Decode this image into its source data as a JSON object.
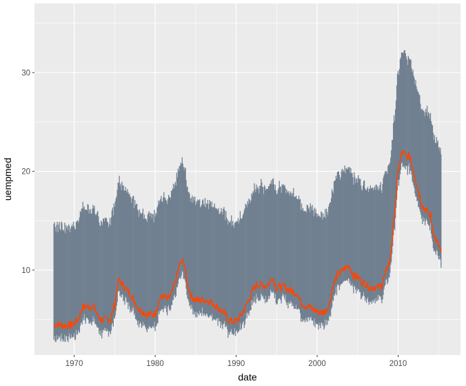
{
  "chart_data": {
    "type": "line",
    "title": "",
    "xlabel": "date",
    "ylabel": "uempmed",
    "xlim": [
      1965.1,
      2017.7
    ],
    "ylim": [
      1.4,
      37.0
    ],
    "x_ticks": [
      1970,
      1980,
      1990,
      2000,
      2010
    ],
    "x_tick_labels": [
      "1970",
      "1980",
      "1990",
      "2000",
      "2010"
    ],
    "y_ticks": [
      10,
      20,
      30
    ],
    "y_tick_labels": [
      "10",
      "20",
      "30"
    ],
    "grid": true,
    "legend": "none",
    "colors": {
      "panel": "#ebebeb",
      "grid": "#ffffff",
      "line": "#ff4500",
      "ribbon": "#708090"
    },
    "x": [
      1967.5,
      1968,
      1968.5,
      1969,
      1969.5,
      1970,
      1970.5,
      1971,
      1971.5,
      1972,
      1972.5,
      1973,
      1973.5,
      1974,
      1974.5,
      1975,
      1975.5,
      1976,
      1976.5,
      1977,
      1977.5,
      1978,
      1978.5,
      1979,
      1979.5,
      1980,
      1980.5,
      1981,
      1981.5,
      1982,
      1982.5,
      1983,
      1983.5,
      1984,
      1984.5,
      1985,
      1985.5,
      1986,
      1986.5,
      1987,
      1987.5,
      1988,
      1988.5,
      1989,
      1989.5,
      1990,
      1990.5,
      1991,
      1991.5,
      1992,
      1992.5,
      1993,
      1993.5,
      1994,
      1994.5,
      1995,
      1995.5,
      1996,
      1996.5,
      1997,
      1997.5,
      1998,
      1998.5,
      1999,
      1999.5,
      2000,
      2000.5,
      2001,
      2001.5,
      2002,
      2002.5,
      2003,
      2003.5,
      2004,
      2004.5,
      2005,
      2005.5,
      2006,
      2006.5,
      2007,
      2007.5,
      2008,
      2008.5,
      2009,
      2009.5,
      2010,
      2010.5,
      2011,
      2011.5,
      2012,
      2012.5,
      2013,
      2013.5,
      2014,
      2014.5,
      2015,
      2015.3
    ],
    "series": [
      {
        "values": [
          4.5,
          4.5,
          4.4,
          4.4,
          4.4,
          4.6,
          5.0,
          6.2,
          6.3,
          6.3,
          6.2,
          5.2,
          4.9,
          5.0,
          5.0,
          6.5,
          9.0,
          8.5,
          8.0,
          7.5,
          6.8,
          6.0,
          5.8,
          5.5,
          5.5,
          5.6,
          7.0,
          7.4,
          7.0,
          7.5,
          8.8,
          10.5,
          11.0,
          8.5,
          7.3,
          7.0,
          6.9,
          7.0,
          6.9,
          6.7,
          6.4,
          6.0,
          5.7,
          5.0,
          4.8,
          4.8,
          5.3,
          6.0,
          6.9,
          7.8,
          8.5,
          8.5,
          8.4,
          8.6,
          9.3,
          8.2,
          8.3,
          8.3,
          8.0,
          7.8,
          7.7,
          6.7,
          6.4,
          6.3,
          6.0,
          5.8,
          5.7,
          5.8,
          6.6,
          8.5,
          9.5,
          9.8,
          10.2,
          10.4,
          9.4,
          9.3,
          8.8,
          8.6,
          8.2,
          8.3,
          8.2,
          8.5,
          9.8,
          11.0,
          15.0,
          20.0,
          22.0,
          21.5,
          21.5,
          19.7,
          18.0,
          16.5,
          16.0,
          15.5,
          13.3,
          12.5,
          11.8
        ]
      }
    ],
    "ribbon": {
      "lower_offset": -1,
      "upper_offset": 10
    }
  }
}
